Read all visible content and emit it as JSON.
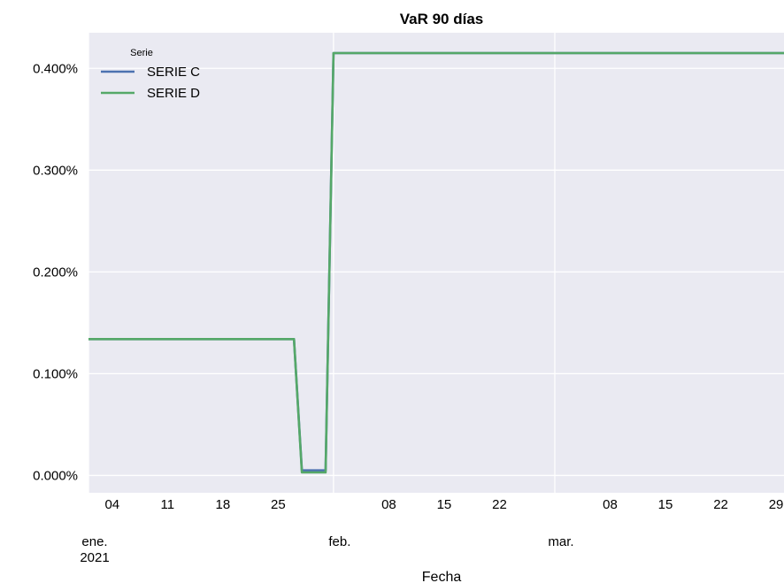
{
  "chart_data": {
    "type": "line",
    "title": "VaR 90 días",
    "xlabel": "Fecha",
    "ylabel": "",
    "x_type": "date",
    "xlim": [
      "2021-01-01",
      "2021-03-30"
    ],
    "ylim": [
      -0.00017,
      0.00435
    ],
    "y_ticks": [
      {
        "value": 0.0,
        "label": "0.000%"
      },
      {
        "value": 0.001,
        "label": "0.100%"
      },
      {
        "value": 0.002,
        "label": "0.200%"
      },
      {
        "value": 0.003,
        "label": "0.300%"
      },
      {
        "value": 0.004,
        "label": "0.400%"
      }
    ],
    "x_ticks_minor": [
      {
        "date": "2021-01-04",
        "label": "04"
      },
      {
        "date": "2021-01-11",
        "label": "11"
      },
      {
        "date": "2021-01-18",
        "label": "18"
      },
      {
        "date": "2021-01-25",
        "label": "25"
      },
      {
        "date": "2021-02-08",
        "label": "08"
      },
      {
        "date": "2021-02-15",
        "label": "15"
      },
      {
        "date": "2021-02-22",
        "label": "22"
      },
      {
        "date": "2021-03-08",
        "label": "08"
      },
      {
        "date": "2021-03-15",
        "label": "15"
      },
      {
        "date": "2021-03-22",
        "label": "22"
      },
      {
        "date": "2021-03-29",
        "label": "29"
      }
    ],
    "x_ticks_major": [
      {
        "date": "2021-01-01",
        "label": "ene.",
        "sublabel": "2021"
      },
      {
        "date": "2021-02-01",
        "label": "feb.",
        "sublabel": ""
      },
      {
        "date": "2021-03-01",
        "label": "mar.",
        "sublabel": ""
      }
    ],
    "grid": true,
    "legend": {
      "title": "Serie",
      "position": "top-left"
    },
    "series": [
      {
        "name": "SERIE C",
        "color": "#4c72b0",
        "x": [
          "2021-01-01",
          "2021-01-27",
          "2021-01-28",
          "2021-01-31",
          "2021-02-01",
          "2021-03-30"
        ],
        "y": [
          0.00134,
          0.00134,
          5e-05,
          5e-05,
          0.00415,
          0.00415
        ]
      },
      {
        "name": "SERIE D",
        "color": "#55a868",
        "x": [
          "2021-01-01",
          "2021-01-27",
          "2021-01-28",
          "2021-01-31",
          "2021-02-01",
          "2021-03-30"
        ],
        "y": [
          0.00134,
          0.00134,
          3e-05,
          3e-05,
          0.00415,
          0.00415
        ]
      }
    ]
  }
}
